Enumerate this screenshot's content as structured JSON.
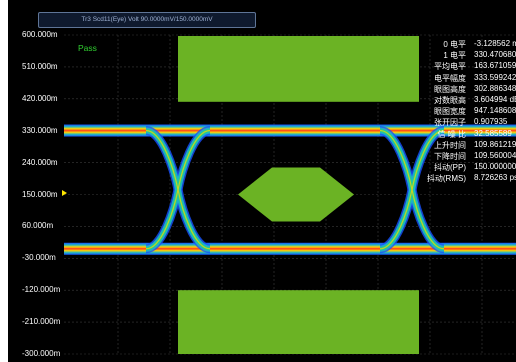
{
  "title_bar": {
    "label": "Tr3 Scd11(Eye) Volt 90.0000mV/150.0000mV"
  },
  "status": {
    "pass_label": "Pass"
  },
  "y_axis": {
    "unit": "mV",
    "labels": [
      "600.000m",
      "510.000m",
      "420.000m",
      "330.000m",
      "240.000m",
      "150.000m",
      "60.000m",
      "-30.000m",
      "-120.000m",
      "-210.000m",
      "-300.000m"
    ]
  },
  "measurements": [
    {
      "label": "0 电平",
      "value": "-3.128562 m"
    },
    {
      "label": "1 电平",
      "value": "330.470680 m"
    },
    {
      "label": "平均电平",
      "value": "163.671059 m"
    },
    {
      "label": "电平幅度",
      "value": "333.599242 m"
    },
    {
      "label": "眼图高度",
      "value": "302.886348 m"
    },
    {
      "label": "对数眼高",
      "value": "3.604994 dB"
    },
    {
      "label": "眼图宽度",
      "value": "947.148608 p"
    },
    {
      "label": "张开因子",
      "value": "0.907935"
    },
    {
      "label": "信 噪 比",
      "value": "32.585589"
    },
    {
      "label": "上升时间",
      "value": "109.861219 p"
    },
    {
      "label": "下降时间",
      "value": "109.560004 p"
    },
    {
      "label": "抖动(PP)",
      "value": "150.000000 p"
    },
    {
      "label": "抖动(RMS)",
      "value": "8.726263 ps"
    }
  ],
  "colors": {
    "background": "#000000",
    "mask": "#6bb324",
    "grid": "#3b3b3b",
    "trace_core": "#ff3b1f",
    "trace_mid": "#ffd400",
    "trace_outer": "#1fb7c4",
    "trace_edge": "#1850ff"
  },
  "chart_data": {
    "type": "eye-diagram",
    "ylim": [
      -300,
      600
    ],
    "y_ticks": [
      600,
      510,
      420,
      330,
      240,
      150,
      60,
      -30,
      -120,
      -210,
      -300
    ],
    "one_level": 330.47,
    "zero_level": -3.13,
    "crossing_level": 150,
    "pass": true
  }
}
